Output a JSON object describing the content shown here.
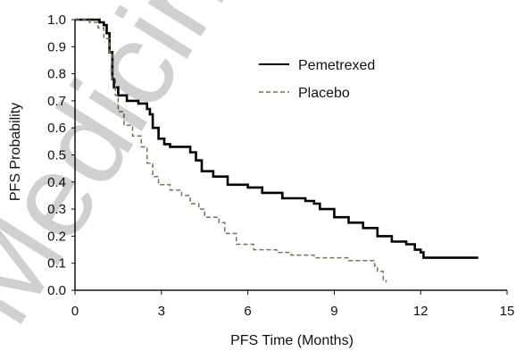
{
  "chart_data": {
    "type": "line",
    "title": "",
    "xlabel": "PFS Time (Months)",
    "ylabel": "PFS Probability",
    "xlim": [
      0,
      15
    ],
    "ylim": [
      0,
      1
    ],
    "xticks": [
      0,
      3,
      6,
      9,
      12,
      15
    ],
    "yticks": [
      0.0,
      0.1,
      0.2,
      0.3,
      0.4,
      0.5,
      0.6,
      0.7,
      0.8,
      0.9,
      1.0
    ],
    "ytick_labels": [
      "0.0",
      "0.1",
      "0.2",
      "0.3",
      "0.4",
      "0.5",
      "0.6",
      "0.7",
      "0.8",
      "0.9",
      "1.0"
    ],
    "xtick_labels": [
      "0",
      "3",
      "6",
      "9",
      "12",
      "15"
    ],
    "grid": false,
    "legend_position": "top-right",
    "series": [
      {
        "name": "Pemetrexed",
        "style": "solid",
        "color": "#000000",
        "points": [
          [
            0,
            1.0
          ],
          [
            0.8,
            1.0
          ],
          [
            0.85,
            0.99
          ],
          [
            1.0,
            0.98
          ],
          [
            1.1,
            0.95
          ],
          [
            1.2,
            0.88
          ],
          [
            1.3,
            0.78
          ],
          [
            1.35,
            0.75
          ],
          [
            1.5,
            0.72
          ],
          [
            1.8,
            0.7
          ],
          [
            2.2,
            0.69
          ],
          [
            2.5,
            0.67
          ],
          [
            2.6,
            0.65
          ],
          [
            2.7,
            0.6
          ],
          [
            2.9,
            0.56
          ],
          [
            3.1,
            0.54
          ],
          [
            3.3,
            0.53
          ],
          [
            3.8,
            0.53
          ],
          [
            4.0,
            0.51
          ],
          [
            4.2,
            0.48
          ],
          [
            4.4,
            0.44
          ],
          [
            4.8,
            0.42
          ],
          [
            5.3,
            0.39
          ],
          [
            6.0,
            0.38
          ],
          [
            6.5,
            0.36
          ],
          [
            7.2,
            0.34
          ],
          [
            8.0,
            0.33
          ],
          [
            8.3,
            0.32
          ],
          [
            8.5,
            0.3
          ],
          [
            9.0,
            0.27
          ],
          [
            9.5,
            0.25
          ],
          [
            10.0,
            0.23
          ],
          [
            10.5,
            0.2
          ],
          [
            11.0,
            0.18
          ],
          [
            11.5,
            0.17
          ],
          [
            11.8,
            0.15
          ],
          [
            12.0,
            0.14
          ],
          [
            12.1,
            0.12
          ],
          [
            13.2,
            0.12
          ],
          [
            14.0,
            0.12
          ]
        ]
      },
      {
        "name": "Placebo",
        "style": "dashed",
        "color": "#6b7a52",
        "points": [
          [
            0,
            1.0
          ],
          [
            0.5,
            0.99
          ],
          [
            0.8,
            0.97
          ],
          [
            1.0,
            0.93
          ],
          [
            1.2,
            0.88
          ],
          [
            1.3,
            0.78
          ],
          [
            1.4,
            0.72
          ],
          [
            1.5,
            0.66
          ],
          [
            1.7,
            0.61
          ],
          [
            2.0,
            0.57
          ],
          [
            2.3,
            0.53
          ],
          [
            2.5,
            0.47
          ],
          [
            2.7,
            0.42
          ],
          [
            2.9,
            0.39
          ],
          [
            3.3,
            0.37
          ],
          [
            3.7,
            0.35
          ],
          [
            4.0,
            0.32
          ],
          [
            4.3,
            0.3
          ],
          [
            4.5,
            0.27
          ],
          [
            5.0,
            0.25
          ],
          [
            5.2,
            0.21
          ],
          [
            5.6,
            0.17
          ],
          [
            6.2,
            0.15
          ],
          [
            7.0,
            0.14
          ],
          [
            7.5,
            0.13
          ],
          [
            8.3,
            0.12
          ],
          [
            9.5,
            0.11
          ],
          [
            10.2,
            0.11
          ],
          [
            10.4,
            0.09
          ],
          [
            10.5,
            0.07
          ],
          [
            10.7,
            0.04
          ],
          [
            10.8,
            0.03
          ]
        ]
      }
    ]
  },
  "watermark": {
    "text": "Medicinal",
    "color": "#000000"
  }
}
